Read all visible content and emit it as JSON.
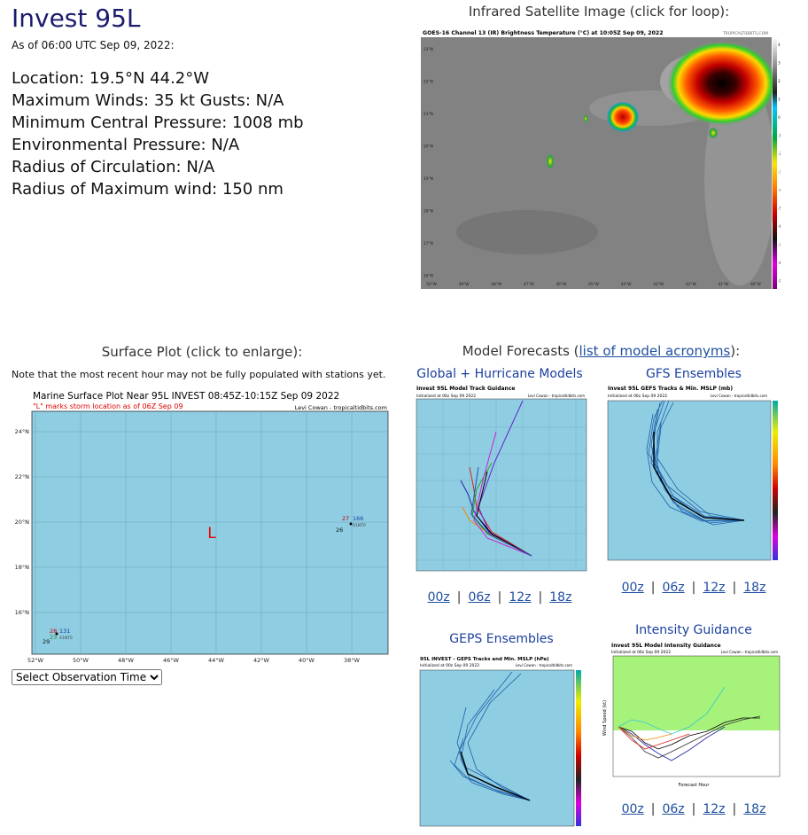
{
  "storm": {
    "title": "Invest 95L",
    "as_of": "As of 06:00 UTC Sep 09, 2022:",
    "stats": [
      "Location: 19.5°N 44.2°W",
      "Maximum Winds: 35 kt  Gusts: N/A",
      "Minimum Central Pressure: 1008 mb",
      "Environmental Pressure: N/A",
      "Radius of Circulation: N/A",
      "Radius of Maximum wind: 150 nm"
    ]
  },
  "satellite": {
    "caption": "Infrared Satellite Image (click for loop):",
    "header": "GOES-16 Channel 13 (IR) Brightness Temperature (°C) at 10:05Z Sep 09, 2022",
    "credit": "TROPICALTIDBITS.COM",
    "lat_labels": [
      "23°N",
      "22°N",
      "21°N",
      "20°N",
      "19°N",
      "18°N",
      "17°N",
      "16°N"
    ],
    "lon_labels": [
      "50°W",
      "49°W",
      "48°W",
      "47°W",
      "46°W",
      "45°W",
      "44°W",
      "43°W",
      "42°W",
      "41°W",
      "40°W"
    ],
    "scale_labels": [
      "40",
      "30",
      "20",
      "10",
      "0",
      "-10",
      "-20",
      "-30",
      "-40",
      "-50",
      "-60",
      "-70",
      "-80",
      "-90"
    ]
  },
  "surface": {
    "caption": "Surface Plot (click to enlarge):",
    "note": "Note that the most recent hour may not be fully populated with stations yet.",
    "map_title": "Marine Surface Plot Near 95L INVEST 08:45Z-10:15Z Sep 09 2022",
    "map_subtitle": "\"L\" marks storm location as of 06Z Sep 09",
    "credit": "Levi Cowan - tropicaltidbits.com",
    "storm_marker": "L",
    "lat_labels": [
      "24°N",
      "22°N",
      "20°N",
      "18°N",
      "16°N"
    ],
    "lon_labels": [
      "52°W",
      "50°W",
      "48°W",
      "46°W",
      "44°W",
      "42°W",
      "40°W",
      "38°W"
    ],
    "stations": [
      {
        "temp": "27",
        "dew": "26",
        "id": "166",
        "extra": "41NT0"
      },
      {
        "temp": "28",
        "dew": "23",
        "id": "131",
        "extra": "41NT0"
      }
    ],
    "station_extra_value": "29",
    "select_label": "Select Observation Time..."
  },
  "models": {
    "caption_prefix": "Model Forecasts (",
    "caption_link": "list of model acronyms",
    "caption_suffix": "):",
    "global": {
      "caption": "Global + Hurricane Models",
      "plot_title": "Invest 95L Model Track Guidance",
      "init": "Initialized at 06z Sep 09 2022",
      "credit": "Levi Cowan - tropicaltidbits.com"
    },
    "gfs": {
      "caption": "GFS Ensembles",
      "plot_title": "Invest 95L GEFS Tracks & Min. MSLP (mb)",
      "init": "Initialized at 06z Sep 09 2022",
      "credit": "Levi Cowan - tropicaltidbits.com",
      "scale_labels": [
        "1010",
        "1000",
        "990",
        "980",
        "970",
        "960",
        "950",
        "940",
        "930"
      ]
    },
    "geps": {
      "caption": "GEPS Ensembles",
      "plot_title": "95L INVEST - GEPS Tracks and Min. MSLP (hPa)",
      "init": "Initialized at 00z Sep 09 2022",
      "credit": "Levi Cowan - tropicaltidbits.com",
      "scale_labels": [
        "1010",
        "1000",
        "990",
        "980",
        "970",
        "960",
        "950",
        "940",
        "930"
      ]
    },
    "intensity": {
      "caption": "Intensity Guidance",
      "plot_title": "Invest 95L Model Intensity Guidance",
      "init": "Initialized at 06z Sep 09 2022",
      "credit": "Levi Cowan - tropicaltidbits.com",
      "xlabel": "Forecast Hour",
      "ylabel": "Wind Speed (kt)"
    },
    "runs": [
      "00z",
      "06z",
      "12z",
      "18z"
    ]
  }
}
